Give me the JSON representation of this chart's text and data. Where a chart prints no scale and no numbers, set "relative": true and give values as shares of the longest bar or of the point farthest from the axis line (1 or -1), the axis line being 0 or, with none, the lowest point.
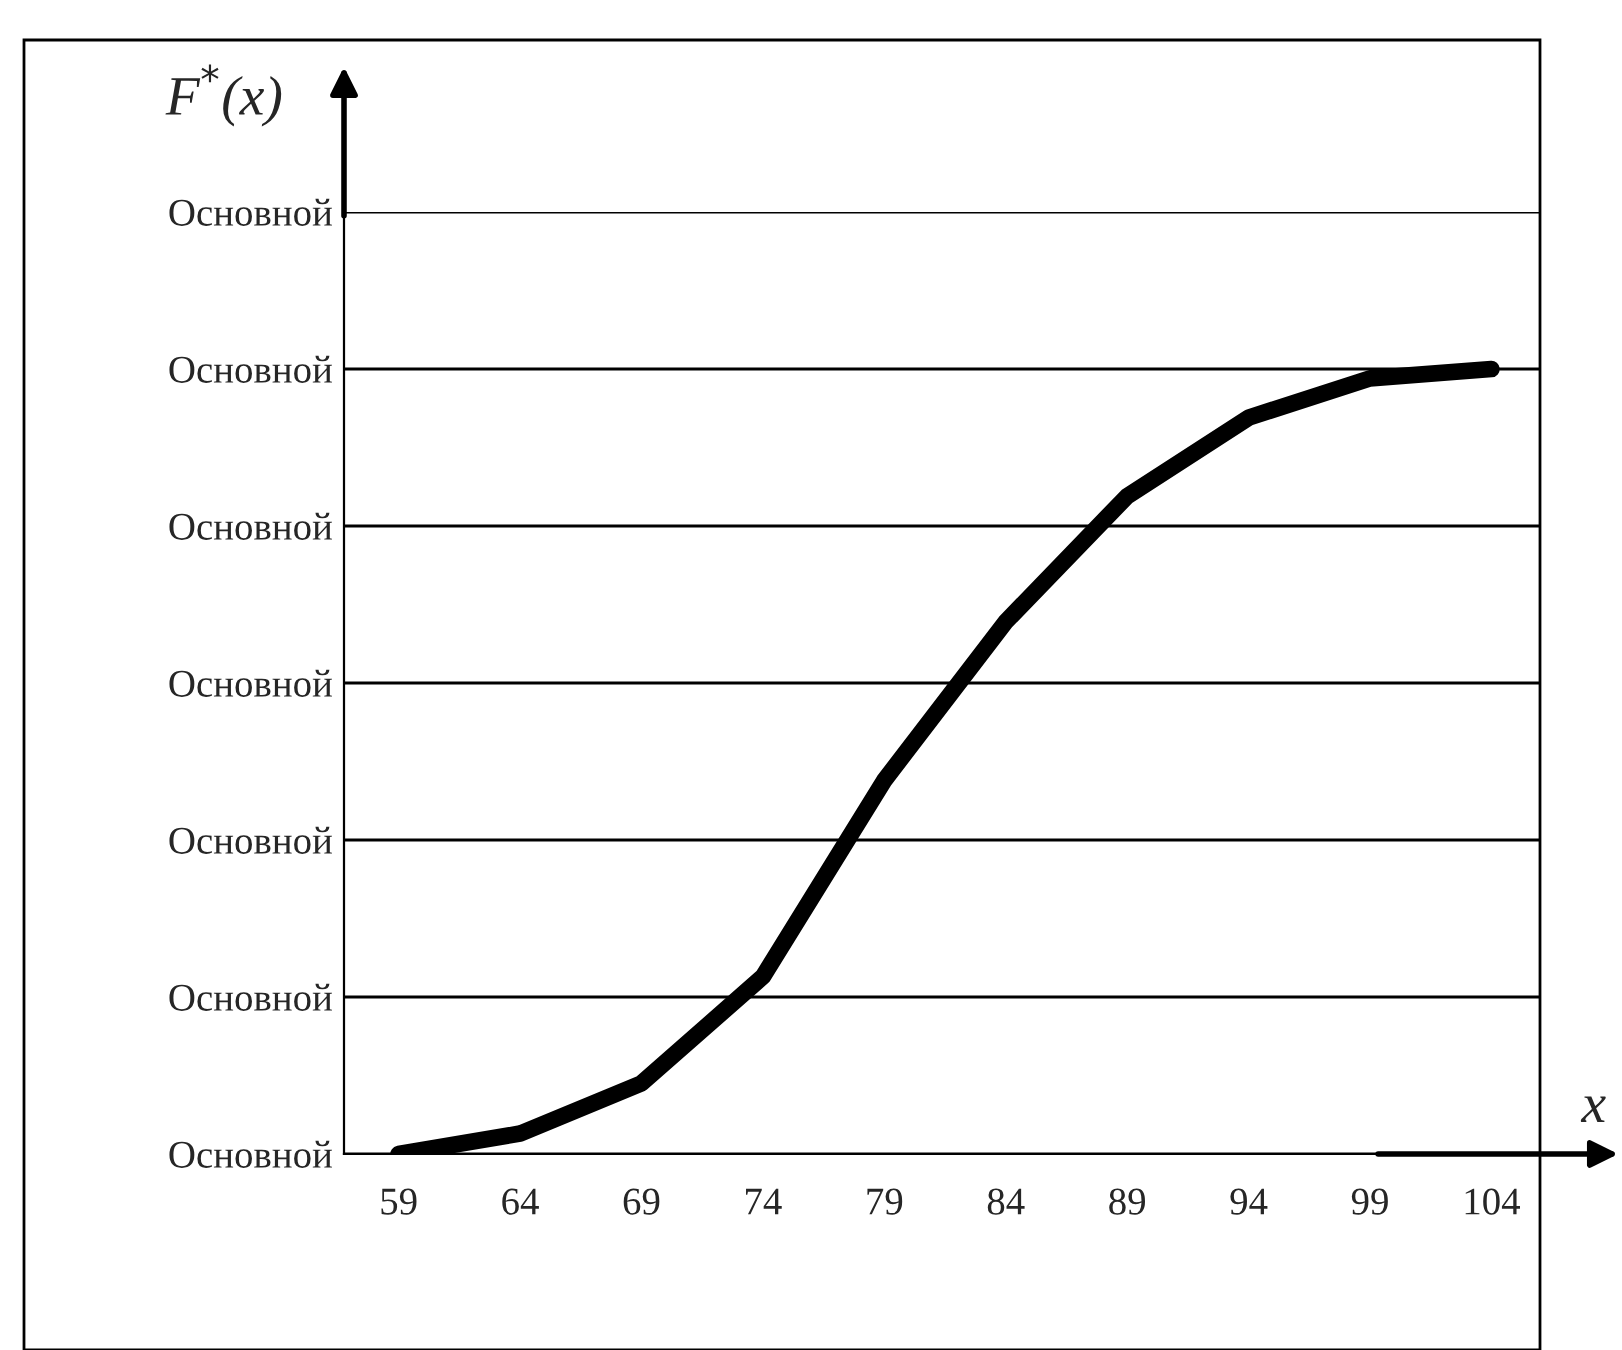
{
  "chart_data": {
    "type": "line",
    "xlabel": "x",
    "ylabel": "F$^{*}$(x)",
    "categories": [
      "59",
      "64",
      "69",
      "74",
      "79",
      "84",
      "89",
      "94",
      "99",
      "104"
    ],
    "series": [
      {
        "color": "#000000",
        "values": [
          0,
          0.026,
          0.09,
          0.226,
          0.476,
          0.678,
          0.838,
          0.938,
          0.988,
          1.0
        ]
      }
    ],
    "relative": true,
    "annotations": [
      "Основной",
      "Основной",
      "Основной",
      "Основной",
      "Основной",
      "Основной",
      "Основной"
    ],
    "grid": "y",
    "marker": "none",
    "line_style": "solid",
    "legend": false
  }
}
